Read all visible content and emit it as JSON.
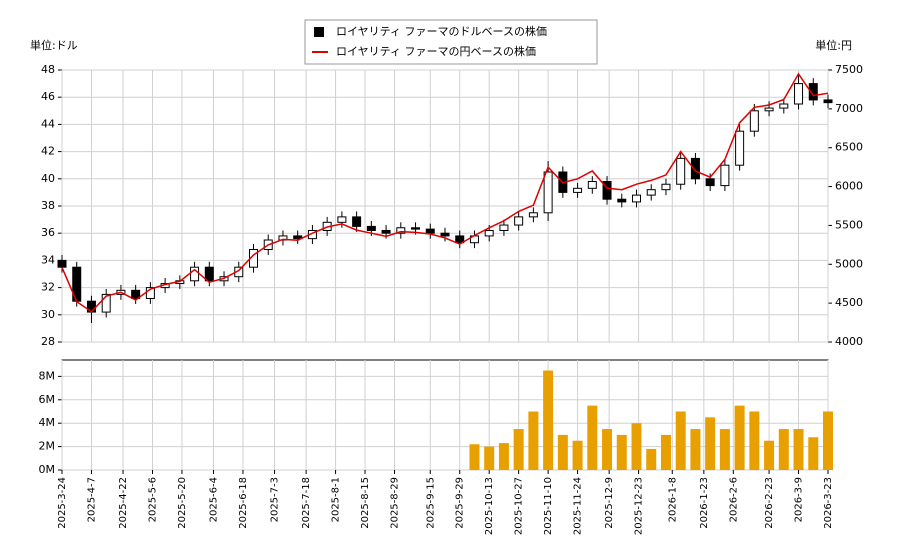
{
  "chart_data": [
    {
      "type": "candlestick",
      "y_label": "単位:ドル",
      "y2_label": "単位:円",
      "x": [
        "2025-3-24",
        "2025-3-31",
        "2025-4-7",
        "2025-4-14",
        "2025-4-21",
        "2025-4-28",
        "2025-5-5",
        "2025-5-12",
        "2025-5-19",
        "2025-5-26",
        "2025-6-2",
        "2025-6-9",
        "2025-6-16",
        "2025-6-23",
        "2025-6-30",
        "2025-7-7",
        "2025-7-14",
        "2025-7-21",
        "2025-7-28",
        "2025-8-4",
        "2025-8-11",
        "2025-8-18",
        "2025-8-25",
        "2025-9-1",
        "2025-9-8",
        "2025-9-15",
        "2025-9-22",
        "2025-9-29",
        "2025-10-6",
        "2025-10-13",
        "2025-10-20",
        "2025-10-27",
        "2025-11-3",
        "2025-11-10",
        "2025-11-17",
        "2025-11-24",
        "2025-12-1",
        "2025-12-8",
        "2025-12-15",
        "2025-12-22",
        "2025-12-29",
        "2026-1-5",
        "2026-1-12",
        "2026-1-19",
        "2026-1-26",
        "2026-2-2",
        "2026-2-9",
        "2026-2-16",
        "2026-2-23",
        "2026-3-2",
        "2026-3-9",
        "2026-3-16",
        "2026-3-23"
      ],
      "xlim": [
        "2025-3-24",
        "2026-3-23"
      ],
      "series": [
        {
          "name": "ロイヤリティ ファーマのドルベースの株価",
          "color": "#000000",
          "open": [
            34.0,
            33.5,
            31.0,
            30.2,
            31.5,
            31.8,
            31.2,
            32.0,
            32.3,
            32.5,
            33.5,
            32.5,
            32.8,
            33.5,
            34.8,
            35.5,
            35.8,
            35.6,
            36.2,
            36.8,
            37.2,
            36.5,
            36.2,
            36.0,
            36.4,
            36.3,
            36.0,
            35.8,
            35.3,
            35.8,
            36.2,
            36.6,
            37.2,
            37.5,
            40.5,
            39.0,
            39.3,
            39.8,
            38.5,
            38.3,
            38.8,
            39.2,
            39.6,
            41.5,
            40.0,
            39.5,
            41.0,
            43.5,
            45.0,
            45.2,
            45.5,
            47.0,
            45.8
          ],
          "high": [
            34.4,
            33.9,
            31.4,
            31.9,
            32.2,
            32.2,
            32.4,
            32.7,
            32.9,
            33.9,
            33.9,
            33.2,
            33.9,
            35.2,
            35.9,
            36.2,
            36.2,
            36.6,
            37.2,
            37.6,
            37.6,
            36.9,
            36.6,
            36.8,
            36.8,
            36.7,
            36.4,
            36.2,
            36.2,
            36.6,
            37.0,
            37.6,
            37.9,
            41.3,
            40.9,
            39.7,
            40.2,
            40.2,
            38.9,
            39.2,
            39.6,
            40.0,
            42.0,
            41.9,
            40.4,
            41.4,
            44.0,
            45.5,
            45.7,
            45.9,
            47.6,
            47.4,
            46.2
          ],
          "low": [
            33.1,
            30.6,
            29.4,
            29.8,
            31.1,
            30.8,
            30.8,
            31.6,
            31.9,
            32.1,
            32.1,
            32.1,
            32.4,
            33.1,
            34.4,
            35.1,
            35.2,
            35.2,
            35.8,
            36.4,
            36.1,
            35.8,
            35.6,
            35.6,
            35.9,
            35.6,
            35.4,
            34.9,
            34.9,
            35.4,
            35.8,
            36.2,
            36.8,
            36.9,
            38.6,
            38.6,
            38.9,
            38.1,
            37.9,
            37.9,
            38.4,
            38.8,
            39.2,
            39.6,
            39.1,
            39.1,
            40.6,
            43.1,
            44.6,
            44.8,
            45.1,
            45.4,
            45.2
          ],
          "close": [
            33.5,
            31.0,
            30.2,
            31.5,
            31.8,
            31.2,
            32.0,
            32.3,
            32.5,
            33.5,
            32.5,
            32.8,
            33.5,
            34.8,
            35.5,
            35.8,
            35.6,
            36.2,
            36.8,
            37.2,
            36.5,
            36.2,
            36.0,
            36.4,
            36.3,
            36.0,
            35.8,
            35.3,
            35.8,
            36.2,
            36.6,
            37.2,
            37.5,
            40.5,
            39.0,
            39.3,
            39.8,
            38.5,
            38.3,
            38.8,
            39.2,
            39.6,
            41.5,
            40.0,
            39.5,
            41.0,
            43.5,
            45.0,
            45.2,
            45.5,
            47.0,
            45.8,
            45.6
          ]
        },
        {
          "name": "ロイヤリティ ファーマの円ベースの株価",
          "color": "#e00000",
          "axis": "y2",
          "values": [
            4960,
            4520,
            4390,
            4590,
            4640,
            4540,
            4680,
            4740,
            4780,
            4930,
            4770,
            4820,
            4920,
            5120,
            5250,
            5320,
            5310,
            5400,
            5480,
            5520,
            5440,
            5400,
            5360,
            5420,
            5410,
            5390,
            5340,
            5260,
            5370,
            5470,
            5560,
            5680,
            5760,
            6250,
            6050,
            6100,
            6200,
            5980,
            5960,
            6030,
            6080,
            6150,
            6450,
            6200,
            6120,
            6350,
            6820,
            7020,
            7050,
            7120,
            7450,
            7170,
            7200
          ]
        }
      ],
      "ylim": [
        28,
        48
      ],
      "yticks": [
        28,
        30,
        32,
        34,
        36,
        38,
        40,
        42,
        44,
        46,
        48
      ],
      "y2lim": [
        4000,
        7500
      ],
      "y2ticks": [
        4000,
        4500,
        5000,
        5500,
        6000,
        6500,
        7000,
        7500
      ],
      "grid": true
    },
    {
      "type": "bar",
      "color": "#e8a000",
      "values": [
        0,
        0,
        0,
        0,
        0,
        0,
        0,
        0,
        0,
        0,
        0,
        0,
        0,
        0,
        0,
        0,
        0,
        0,
        0,
        0,
        0,
        0,
        0,
        0,
        0,
        0,
        0,
        0,
        2200000,
        2000000,
        2300000,
        3500000,
        5000000,
        8500000,
        3000000,
        2500000,
        5500000,
        3500000,
        3000000,
        4000000,
        1800000,
        3000000,
        5000000,
        3500000,
        4500000,
        3500000,
        5500000,
        5000000,
        2500000,
        3500000,
        3500000,
        2800000,
        5000000
      ],
      "ylim": [
        0,
        9400000
      ],
      "yticks": [
        {
          "value": 0,
          "label": "0M"
        },
        {
          "value": 2000000,
          "label": "2M"
        },
        {
          "value": 4000000,
          "label": "4M"
        },
        {
          "value": 6000000,
          "label": "6M"
        },
        {
          "value": 8000000,
          "label": "8M"
        }
      ],
      "xticks": [
        "2025-3-24",
        "2025-4-7",
        "2025-4-22",
        "2025-5-6",
        "2025-5-20",
        "2025-6-4",
        "2025-6-18",
        "2025-7-3",
        "2025-7-18",
        "2025-8-1",
        "2025-8-15",
        "2025-8-29",
        "2025-9-15",
        "2025-9-29",
        "2025-10-13",
        "2025-10-27",
        "2025-11-10",
        "2025-11-24",
        "2025-12-9",
        "2025-12-23",
        "2026-1-8",
        "2026-1-23",
        "2026-2-6",
        "2026-2-23",
        "2026-3-9",
        "2026-3-23"
      ],
      "grid": true
    }
  ]
}
